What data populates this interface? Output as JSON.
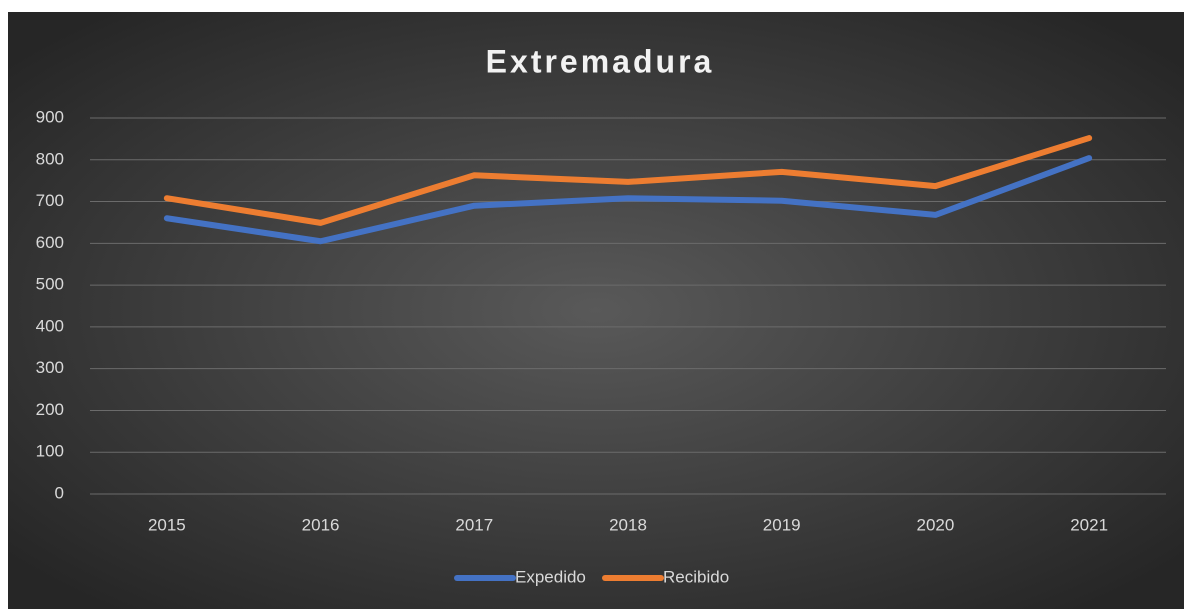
{
  "chart_data": {
    "type": "line",
    "title": "Extremadura",
    "categories": [
      "2015",
      "2016",
      "2017",
      "2018",
      "2019",
      "2020",
      "2021"
    ],
    "series": [
      {
        "name": "Expedido",
        "color": "#4472c4",
        "values": [
          660,
          605,
          690,
          708,
          702,
          668,
          804
        ]
      },
      {
        "name": "Recibido",
        "color": "#ed7d31",
        "values": [
          708,
          649,
          763,
          747,
          771,
          737,
          852
        ]
      }
    ],
    "ylim": [
      0,
      900
    ],
    "yticks": [
      0,
      100,
      200,
      300,
      400,
      500,
      600,
      700,
      800,
      900
    ],
    "grid": true,
    "legend": "bottom"
  }
}
